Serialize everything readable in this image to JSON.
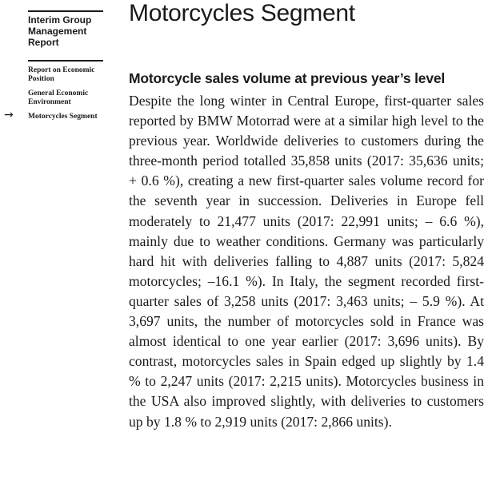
{
  "sidebar": {
    "report_title": "Interim Group Management Report",
    "nav": [
      {
        "label": "Report on Economic Position"
      },
      {
        "label": "General Economic Environment"
      },
      {
        "label": "Motorcycles Segment"
      }
    ],
    "active_indicator": "→"
  },
  "page": {
    "title": "Motorcycles Segment",
    "section_heading": "Motorcycle sales volume at previous year’s level",
    "body": "Despite the long winter in Central Europe, first-quarter sales reported by BMW Motorrad were at a similar high level to the previous year. Worldwide deliveries to customers during the three-month period totalled 35,858 units (2017: 35,636 units; + 0.6 %), creating a new first-quarter sales volume record for the seventh year in succession. Deliveries in Europe fell moderately to 21,477 units (2017: 22,991 units; – 6.6 %), mainly due to weather conditions. Germany was particularly hard hit with deliveries falling to 4,887 units (2017: 5,824 motorcycles; –16.1 %). In Italy, the segment recorded first-quarter sales of 3,258 units (2017: 3,463 units; – 5.9 %). At 3,697 units, the number of motorcycles sold in France was almost identical to one year earlier (2017: 3,696 units). By contrast, motorcycles sales in Spain edged up slightly by 1.4 % to 2,247 units (2017: 2,215 units). Motorcycles busi­ness in the USA also improved slightly, with deliv­eries to customers up by 1.8 % to 2,919 units (2017: 2,866 units)."
  }
}
